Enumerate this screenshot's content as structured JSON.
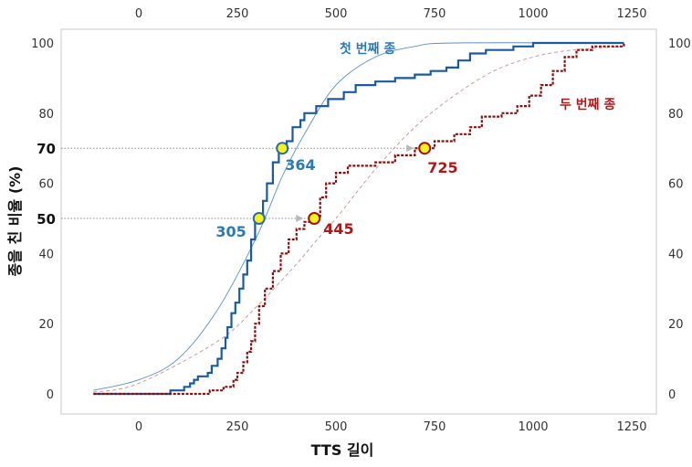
{
  "chart_data": {
    "type": "line",
    "title": "",
    "xlabel": "TTS 길이",
    "ylabel": "종을 친 비율 (%)",
    "xlim": [
      -120,
      1260
    ],
    "ylim": [
      -6,
      104
    ],
    "x_ticks": [
      0,
      250,
      500,
      750,
      1000,
      1250
    ],
    "x_tick_labels": [
      "0",
      "250",
      "500",
      "750",
      "1000",
      "1250"
    ],
    "y_ticks": [
      0,
      20,
      40,
      60,
      80,
      100
    ],
    "y_tick_labels": [
      "0",
      "20",
      "40",
      "60",
      "80",
      "100"
    ],
    "y_highlight_ticks": [
      50,
      70
    ],
    "y_highlight_labels": [
      "50",
      "70"
    ],
    "reference_lines_y": [
      50,
      70
    ],
    "grid": false,
    "series": [
      {
        "name": "첫 번째 종",
        "color": "#1a5aa0",
        "fit_color": "#5a8fc8",
        "style": "empirical-step",
        "points": [
          [
            -115,
            0
          ],
          [
            75,
            0
          ],
          [
            80,
            1
          ],
          [
            110,
            1
          ],
          [
            115,
            2
          ],
          [
            130,
            3
          ],
          [
            140,
            4
          ],
          [
            150,
            5
          ],
          [
            160,
            5
          ],
          [
            175,
            6
          ],
          [
            185,
            8
          ],
          [
            200,
            10
          ],
          [
            210,
            13
          ],
          [
            220,
            16
          ],
          [
            225,
            19
          ],
          [
            235,
            23
          ],
          [
            245,
            26
          ],
          [
            255,
            30
          ],
          [
            265,
            34
          ],
          [
            275,
            38
          ],
          [
            285,
            44
          ],
          [
            295,
            49
          ],
          [
            305,
            50
          ],
          [
            315,
            55
          ],
          [
            325,
            60
          ],
          [
            340,
            66
          ],
          [
            355,
            70
          ],
          [
            364,
            70
          ],
          [
            375,
            72
          ],
          [
            390,
            76
          ],
          [
            410,
            78
          ],
          [
            420,
            80
          ],
          [
            450,
            82
          ],
          [
            480,
            84
          ],
          [
            520,
            86
          ],
          [
            550,
            88
          ],
          [
            600,
            89
          ],
          [
            650,
            90
          ],
          [
            700,
            91
          ],
          [
            740,
            92
          ],
          [
            780,
            93
          ],
          [
            810,
            95
          ],
          [
            840,
            97
          ],
          [
            880,
            98
          ],
          [
            950,
            99
          ],
          [
            1000,
            100
          ],
          [
            1230,
            100
          ]
        ],
        "fit": [
          [
            -115,
            1
          ],
          [
            0,
            4
          ],
          [
            100,
            10
          ],
          [
            200,
            24
          ],
          [
            300,
            45
          ],
          [
            364,
            62
          ],
          [
            420,
            74
          ],
          [
            500,
            88
          ],
          [
            600,
            96
          ],
          [
            700,
            99
          ],
          [
            800,
            100
          ],
          [
            1230,
            100
          ]
        ]
      },
      {
        "name": "두 번째 종",
        "color": "#8b0e0e",
        "fit_color": "#c99090",
        "style": "empirical-step-dotted",
        "points": [
          [
            -115,
            0
          ],
          [
            165,
            0
          ],
          [
            180,
            1
          ],
          [
            195,
            1
          ],
          [
            215,
            2
          ],
          [
            230,
            2
          ],
          [
            240,
            4
          ],
          [
            250,
            6
          ],
          [
            265,
            9
          ],
          [
            275,
            12
          ],
          [
            285,
            15
          ],
          [
            295,
            20
          ],
          [
            305,
            25
          ],
          [
            320,
            30
          ],
          [
            340,
            35
          ],
          [
            360,
            40
          ],
          [
            380,
            44
          ],
          [
            400,
            47
          ],
          [
            420,
            49
          ],
          [
            445,
            50
          ],
          [
            460,
            56
          ],
          [
            475,
            60
          ],
          [
            500,
            63
          ],
          [
            530,
            65
          ],
          [
            600,
            66
          ],
          [
            650,
            68
          ],
          [
            700,
            70
          ],
          [
            725,
            70
          ],
          [
            750,
            72
          ],
          [
            800,
            74
          ],
          [
            840,
            76
          ],
          [
            870,
            79
          ],
          [
            920,
            80
          ],
          [
            960,
            82
          ],
          [
            990,
            85
          ],
          [
            1020,
            88
          ],
          [
            1050,
            92
          ],
          [
            1080,
            96
          ],
          [
            1110,
            98
          ],
          [
            1150,
            99
          ],
          [
            1230,
            100
          ]
        ],
        "fit": [
          [
            -115,
            0.5
          ],
          [
            0,
            3
          ],
          [
            200,
            15
          ],
          [
            300,
            25
          ],
          [
            400,
            37
          ],
          [
            445,
            43
          ],
          [
            500,
            50
          ],
          [
            600,
            64
          ],
          [
            700,
            76
          ],
          [
            800,
            85
          ],
          [
            900,
            92
          ],
          [
            1000,
            96
          ],
          [
            1100,
            98
          ],
          [
            1230,
            99
          ]
        ]
      }
    ],
    "annotations": [
      {
        "series": 0,
        "x": 305,
        "y": 50,
        "label": "305",
        "color": "#2a7ab8"
      },
      {
        "series": 0,
        "x": 364,
        "y": 70,
        "label": "364",
        "color": "#2a7ab8"
      },
      {
        "series": 1,
        "x": 445,
        "y": 50,
        "label": "445",
        "color": "#b01818"
      },
      {
        "series": 1,
        "x": 725,
        "y": 70,
        "label": "725",
        "color": "#b01818"
      }
    ],
    "series_labels": [
      {
        "series": 0,
        "text": "첫 번째 종",
        "color": "#2a7ab8"
      },
      {
        "series": 1,
        "text": "두 번째 종",
        "color": "#b01818"
      }
    ],
    "colors": {
      "frame": "#c8c8c8",
      "reference": "#8c8c8c",
      "arrow": "#b8b8b8",
      "marker_fill_first": "#f4f41c",
      "marker_fill_second": "#f4f41c"
    }
  }
}
